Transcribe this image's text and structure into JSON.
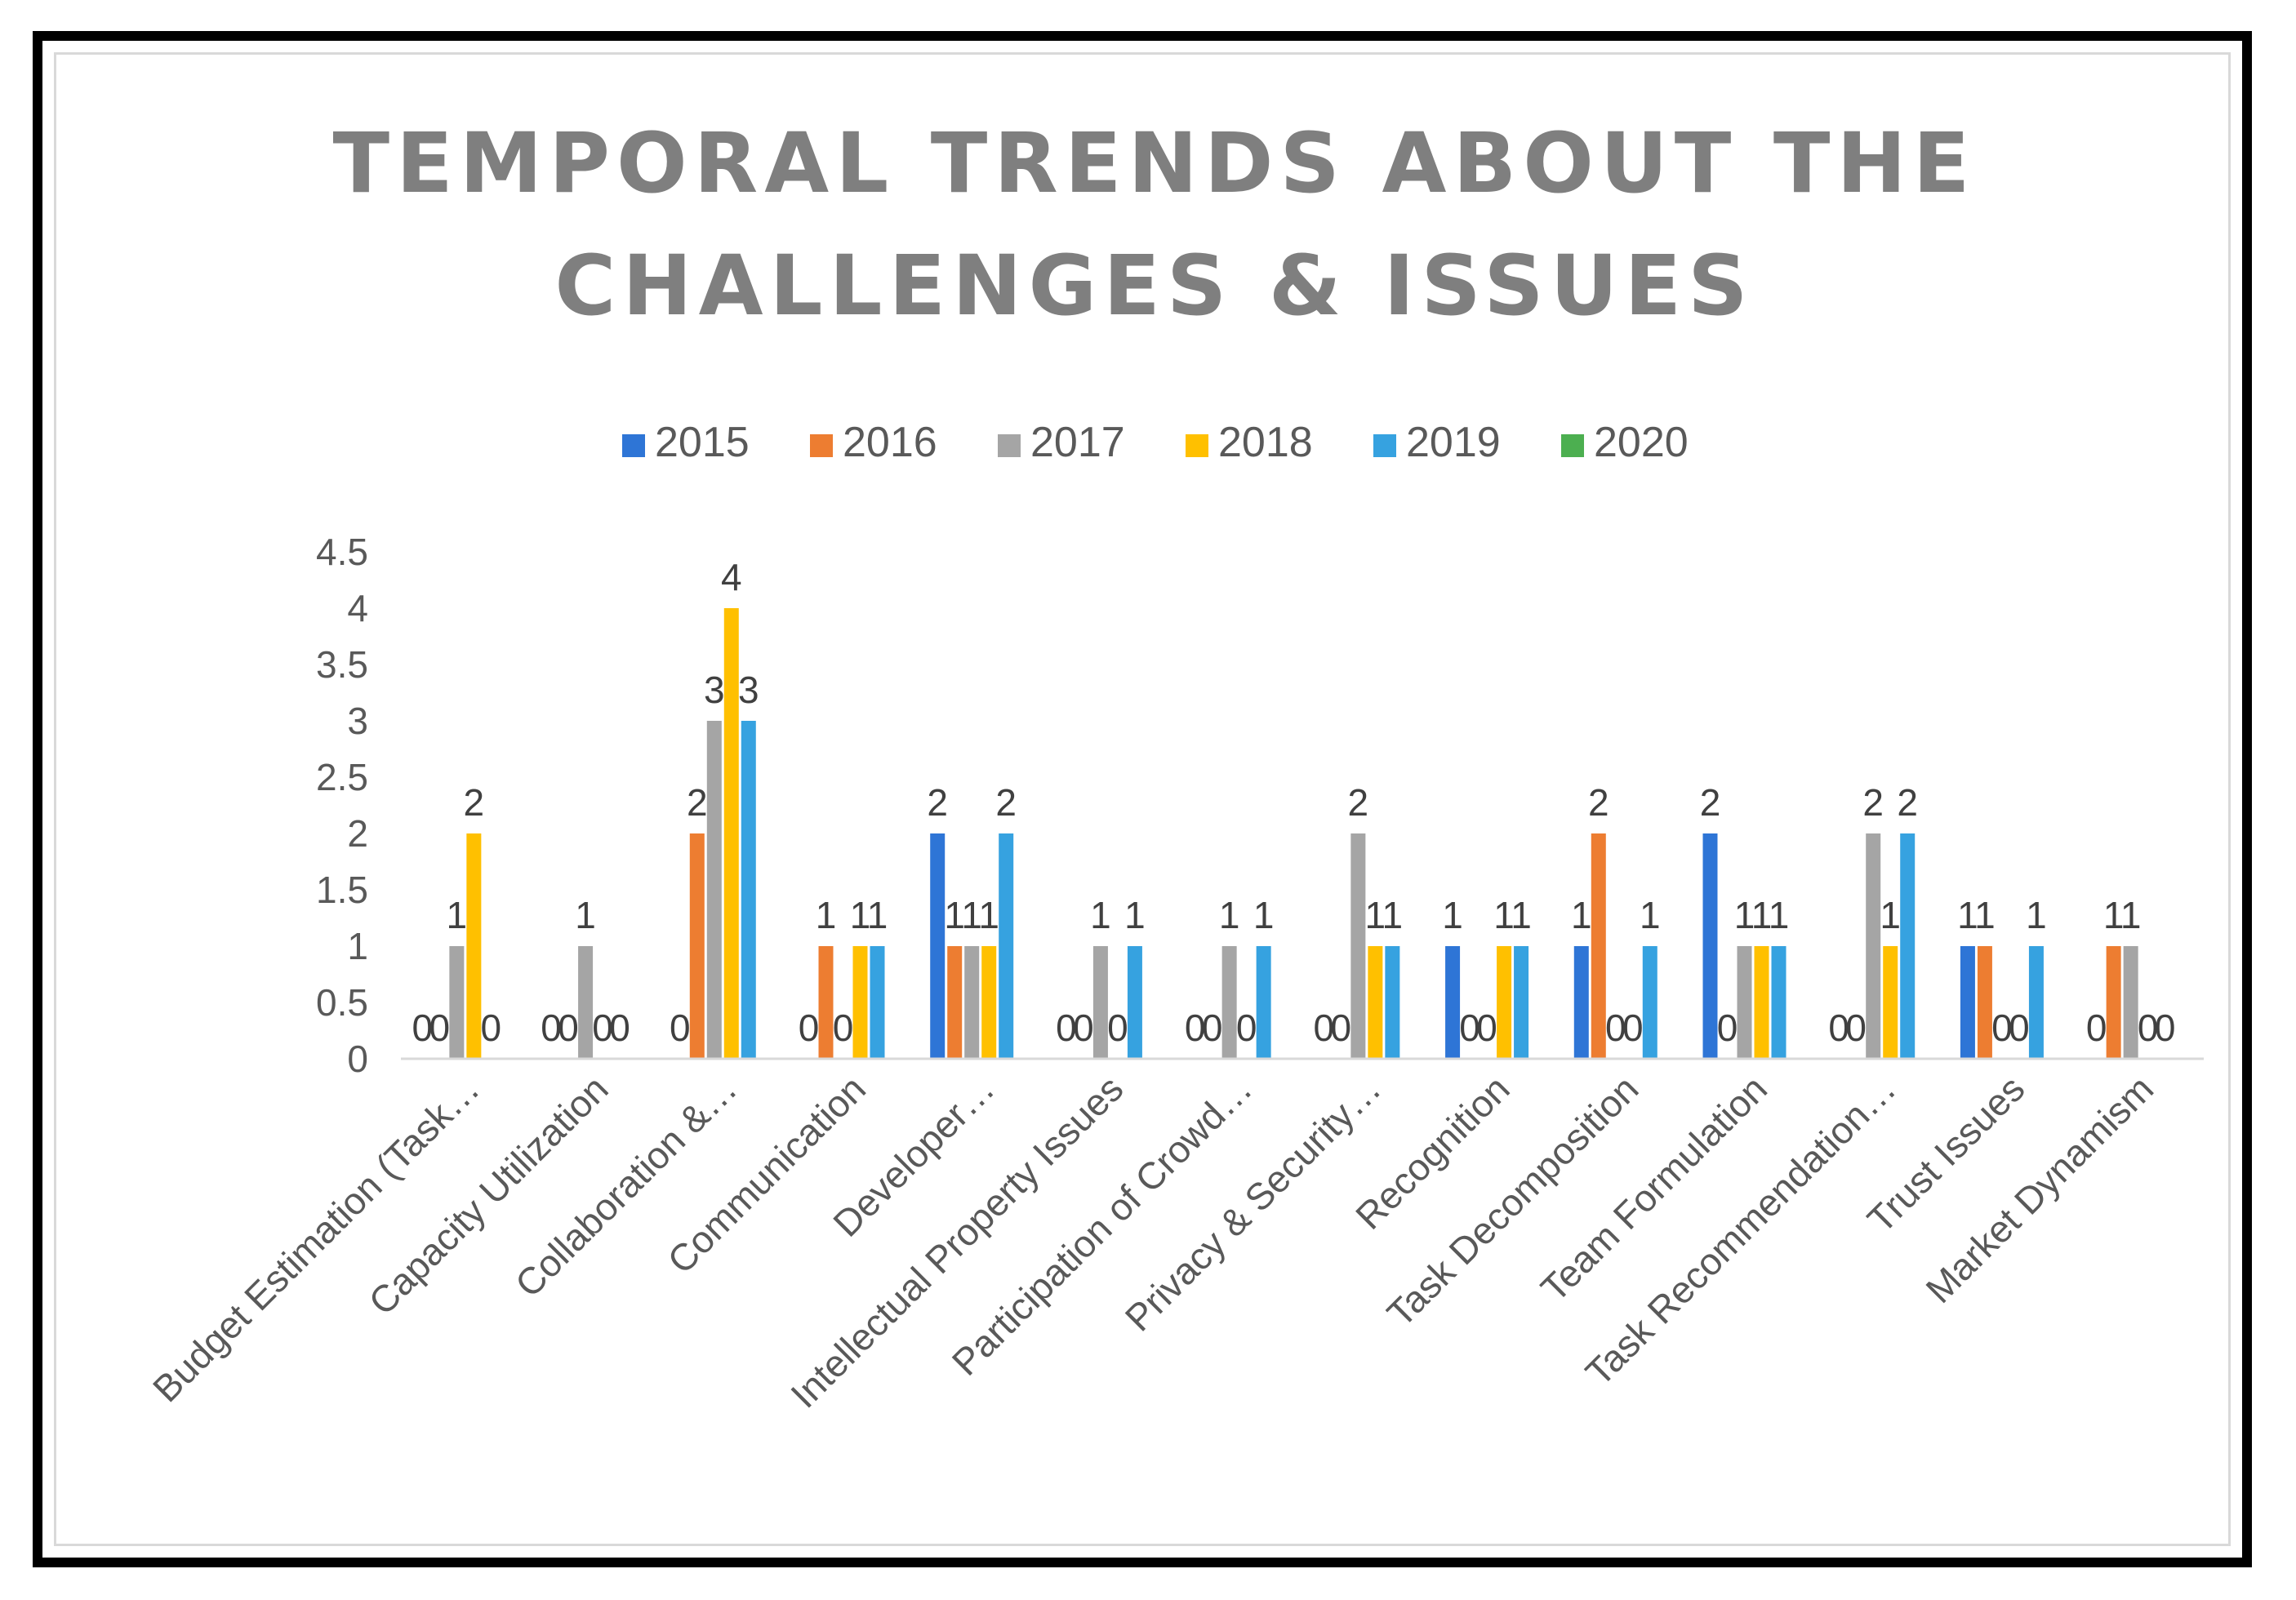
{
  "chart_data": {
    "type": "bar",
    "title_lines": [
      "TEMPORAL TRENDS ABOUT THE",
      "CHALLENGES & ISSUES"
    ],
    "xlabel": "",
    "ylabel": "",
    "ylim": [
      0,
      4.5
    ],
    "yticks": [
      "0",
      "0.5",
      "1",
      "1.5",
      "2",
      "2.5",
      "3",
      "3.5",
      "4",
      "4.5"
    ],
    "legend_position": "top-center",
    "grid": false,
    "categories": [
      "Budget Estimation (Task…",
      "Capacity Utilization",
      "Collaboration &…",
      "Communication",
      "Developer…",
      "Intellectual Property Issues",
      "Participation of Crowd…",
      "Privacy & Security…",
      "Recognition",
      "Task Decomposition",
      "Team Formulation",
      "Task Recommendation…",
      "Trust Issues",
      "Market Dynamism"
    ],
    "series": [
      {
        "name": "2015",
        "color": "#2e75d6",
        "values": [
          0,
          0,
          0,
          0,
          2,
          0,
          0,
          0,
          1,
          1,
          2,
          0,
          1,
          0
        ]
      },
      {
        "name": "2016",
        "color": "#ed7d31",
        "values": [
          0,
          0,
          2,
          1,
          1,
          0,
          0,
          0,
          0,
          2,
          0,
          0,
          1,
          1
        ]
      },
      {
        "name": "2017",
        "color": "#a5a5a5",
        "values": [
          1,
          1,
          3,
          0,
          1,
          1,
          1,
          2,
          0,
          0,
          1,
          2,
          0,
          1
        ]
      },
      {
        "name": "2018",
        "color": "#ffc000",
        "values": [
          2,
          0,
          4,
          1,
          1,
          0,
          0,
          1,
          1,
          0,
          1,
          1,
          0,
          0
        ]
      },
      {
        "name": "2019",
        "color": "#36a2e0",
        "values": [
          0,
          0,
          3,
          1,
          2,
          1,
          1,
          1,
          1,
          1,
          1,
          2,
          1,
          0
        ]
      },
      {
        "name": "2020",
        "color": "#4caf50",
        "values": [
          0,
          0,
          0,
          0,
          0,
          0,
          0,
          0,
          0,
          0,
          0,
          0,
          0,
          0
        ]
      }
    ]
  }
}
